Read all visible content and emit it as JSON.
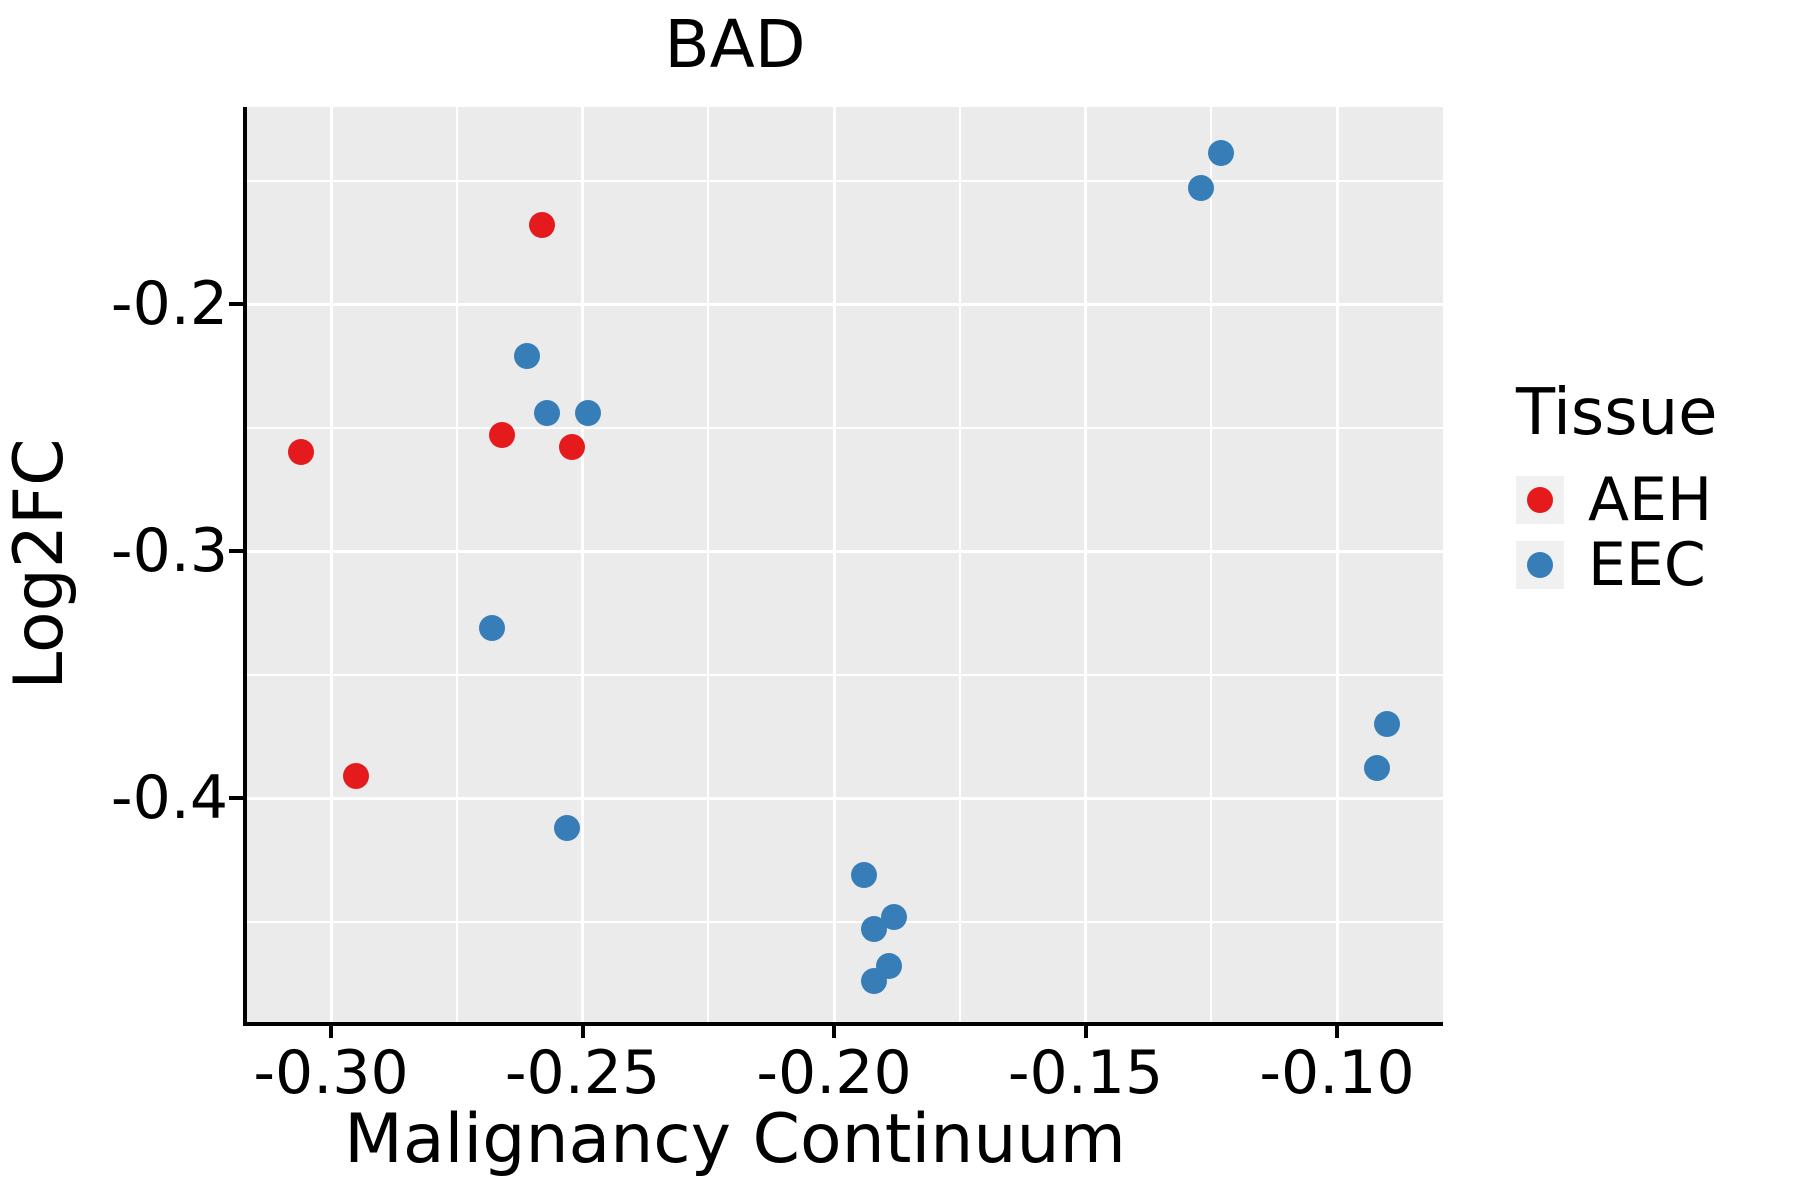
{
  "title": "BAD",
  "axes": {
    "x": {
      "label": "Malignancy Continuum",
      "tick_labels": [
        "-0.30",
        "-0.25",
        "-0.20",
        "-0.15",
        "-0.10"
      ],
      "tick_values": [
        -0.3,
        -0.25,
        -0.2,
        -0.15,
        -0.1
      ]
    },
    "y": {
      "label": "Log2FC",
      "tick_labels": [
        "-0.2",
        "-0.3",
        "-0.4"
      ],
      "tick_values": [
        -0.2,
        -0.3,
        -0.4
      ]
    }
  },
  "legend": {
    "title": "Tissue",
    "items": [
      {
        "label": "AEH",
        "color": "#E41A1C"
      },
      {
        "label": "EEC",
        "color": "#377EB8"
      }
    ]
  },
  "colors": {
    "panel_background": "#EBEBEB",
    "gridline": "#FFFFFF",
    "axis": "#000000",
    "aeh_red": "#E41A1C",
    "eec_blue": "#377EB8"
  },
  "chart_data": {
    "type": "scatter",
    "title": "BAD",
    "xlabel": "Malignancy Continuum",
    "ylabel": "Log2FC",
    "xlim": [
      -0.317,
      -0.079
    ],
    "ylim": [
      -0.491,
      -0.12
    ],
    "grid": {
      "x_major": [
        -0.3,
        -0.25,
        -0.2,
        -0.15,
        -0.1
      ],
      "x_minor": [
        -0.275,
        -0.225,
        -0.175,
        -0.125
      ],
      "y_major": [
        -0.2,
        -0.3,
        -0.4
      ],
      "y_minor": [
        -0.15,
        -0.25,
        -0.35,
        -0.45
      ]
    },
    "legend_position": "right",
    "series": [
      {
        "name": "AEH",
        "color": "#E41A1C",
        "points": [
          [
            -0.306,
            -0.26
          ],
          [
            -0.295,
            -0.391
          ],
          [
            -0.266,
            -0.253
          ],
          [
            -0.258,
            -0.168
          ],
          [
            -0.252,
            -0.258
          ]
        ]
      },
      {
        "name": "EEC",
        "color": "#377EB8",
        "points": [
          [
            -0.268,
            -0.331
          ],
          [
            -0.261,
            -0.221
          ],
          [
            -0.257,
            -0.244
          ],
          [
            -0.253,
            -0.412
          ],
          [
            -0.249,
            -0.244
          ],
          [
            -0.194,
            -0.431
          ],
          [
            -0.192,
            -0.453
          ],
          [
            -0.192,
            -0.474
          ],
          [
            -0.189,
            -0.468
          ],
          [
            -0.188,
            -0.448
          ],
          [
            -0.127,
            -0.153
          ],
          [
            -0.123,
            -0.139
          ],
          [
            -0.092,
            -0.388
          ],
          [
            -0.09,
            -0.37
          ]
        ]
      }
    ]
  }
}
